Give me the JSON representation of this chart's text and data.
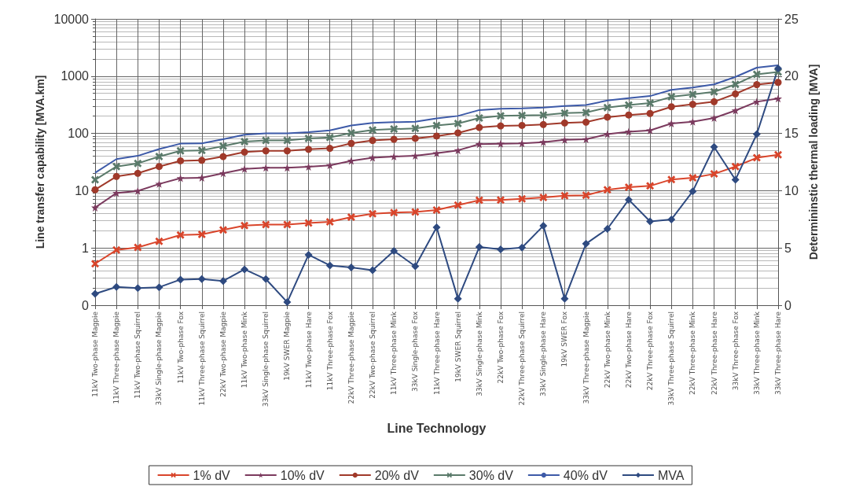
{
  "chart_data": {
    "type": "line",
    "xlabel": "Line Technology",
    "ylabel": "Line transfer capability [MVA.km]",
    "y2label": "Determininstic thermal loading [MVA]",
    "categories": [
      "11kV Two-phase Magpie",
      "11kV Three-phase Magpie",
      "11kV Two-phase Squirrel",
      "33kV Single-phase Magpie",
      "11kV Two-phase Fox",
      "11kV Three-phase Squirrel",
      "22kV Two-phase Magpie",
      "11kV Two-phase Mink",
      "33kV Single-phase Squirrel",
      "19kV SWER Magpie",
      "11kV Two-phase Hare",
      "11kV Three-phase Fox",
      "22kV Three-phase Magpie",
      "22kV Two-phase Squirrel",
      "11kV Three-phase Mink",
      "33kV Single-phase Fox",
      "11kV Three-phase Hare",
      "19kV SWER Squirrel",
      "33kV Single-phase Mink",
      "22kV Two-phase Fox",
      "22kV Three-phase Squirrel",
      "33kV Single-phase Hare",
      "19kV SWER Fox",
      "33kV Three-phase Magpie",
      "22kV Two-phase Mink",
      "22kV Two-phase Hare",
      "22kV Three-phase Fox",
      "33kV Three-phase Squirrel",
      "22kV Three-phase Mink",
      "22kV Three-phase Hare",
      "33kV Three-phase Fox",
      "33kV Three-phase Mink",
      "33kV Three-phase Hare"
    ],
    "series": [
      {
        "name": "1% dV",
        "color": "#d9452b",
        "marker": "cross",
        "values": [
          0.53,
          0.92,
          1.02,
          1.31,
          1.68,
          1.72,
          2.06,
          2.46,
          2.56,
          2.56,
          2.72,
          2.86,
          3.46,
          3.94,
          4.14,
          4.23,
          4.6,
          5.6,
          6.8,
          6.9,
          7.2,
          7.6,
          8.2,
          8.3,
          10.4,
          11.5,
          12.1,
          15.7,
          16.8,
          19.6,
          26.4,
          37.5,
          42.3
        ]
      },
      {
        "name": "10% dV",
        "color": "#7b3a5e",
        "marker": "star",
        "values": [
          5.06,
          9.1,
          9.9,
          13.1,
          16.5,
          16.8,
          20.1,
          23.9,
          25.1,
          25.1,
          26.1,
          27.7,
          33.2,
          37.5,
          39.4,
          40.6,
          45,
          50.6,
          65,
          66,
          67,
          70.5,
          77,
          79,
          97,
          107,
          113,
          149,
          160,
          186,
          251,
          357,
          406
        ]
      },
      {
        "name": "20% dV",
        "color": "#a0392a",
        "marker": "circle",
        "values": [
          10.4,
          17.7,
          20.1,
          26.4,
          33.2,
          33.9,
          39.4,
          47.2,
          49.6,
          49.6,
          52.7,
          54.8,
          67,
          75.5,
          79,
          81.8,
          90,
          102,
          127,
          135,
          138,
          143,
          152,
          157,
          192,
          210,
          223,
          292,
          323,
          357,
          491,
          711,
          778
        ]
      },
      {
        "name": "30% dV",
        "color": "#5a7a6a",
        "marker": "cross",
        "values": [
          15.5,
          26.4,
          30,
          39.4,
          49.6,
          50.6,
          60,
          72,
          75.5,
          75.5,
          81.8,
          85,
          102,
          115,
          119,
          122,
          138,
          149,
          186,
          202,
          206,
          210,
          227,
          232,
          283,
          313,
          339,
          435,
          481,
          532,
          719,
          1072,
          1186
        ]
      },
      {
        "name": "40% dV",
        "color": "#3d5aa8",
        "marker": "none",
        "values": [
          20.6,
          35.6,
          40.6,
          53.2,
          66.3,
          67,
          79,
          95,
          100,
          100,
          105,
          113,
          138,
          152,
          157,
          160,
          183,
          202,
          256,
          270,
          273,
          283,
          301,
          313,
          375,
          414,
          449,
          577,
          631,
          719,
          970,
          1406,
          1553
        ]
      },
      {
        "name": "MVA",
        "color": "#2e4a80",
        "marker": "diamond",
        "axis": "y2",
        "values": [
          1.0,
          1.6,
          1.5,
          1.57,
          2.24,
          2.28,
          2.12,
          3.13,
          2.28,
          0.27,
          4.4,
          3.47,
          3.29,
          3.06,
          4.74,
          3.4,
          6.8,
          0.56,
          5.08,
          4.87,
          5.03,
          6.93,
          0.56,
          5.37,
          6.66,
          9.21,
          7.31,
          7.49,
          9.95,
          13.82,
          10.96,
          14.94,
          20.68
        ]
      }
    ],
    "log": "y",
    "ylim": [
      0.1,
      10000
    ],
    "yticks": [
      {
        "value": 0.1,
        "label": "0"
      },
      1,
      10,
      100,
      1000,
      10000
    ],
    "y2lim": [
      0,
      25
    ],
    "y2ticks": [
      0,
      5,
      10,
      15,
      20,
      25
    ],
    "grid": true,
    "legend": "bottom",
    "line_style": "solid"
  }
}
